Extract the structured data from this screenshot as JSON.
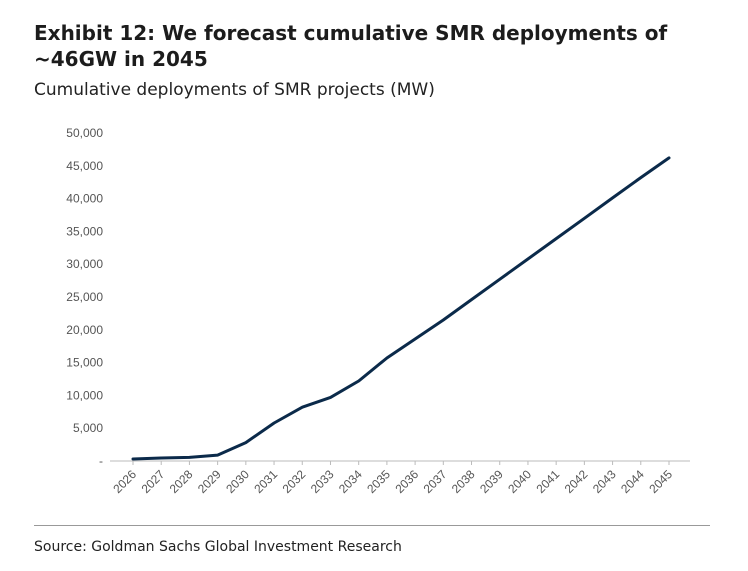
{
  "title": "Exhibit 12: We forecast cumulative SMR deployments of ~46GW in 2045",
  "subtitle": "Cumulative deployments of SMR projects (MW)",
  "source": "Source: Goldman Sachs Global Investment Research",
  "colors": {
    "line": "#0b2a4a",
    "axis": "#bbbbbb",
    "text": "#555555"
  },
  "chart_data": {
    "type": "line",
    "title": "",
    "xlabel": "",
    "ylabel": "",
    "ylim": [
      0,
      50000
    ],
    "yticks": [
      0,
      5000,
      10000,
      15000,
      20000,
      25000,
      30000,
      35000,
      40000,
      45000,
      50000
    ],
    "ytick_labels": [
      "-",
      "5,000",
      "10,000",
      "15,000",
      "20,000",
      "25,000",
      "30,000",
      "35,000",
      "40,000",
      "45,000",
      "50,000"
    ],
    "grid": false,
    "legend": "none",
    "x": [
      "2026",
      "2027",
      "2028",
      "2029",
      "2030",
      "2031",
      "2032",
      "2033",
      "2034",
      "2035",
      "2036",
      "2037",
      "2038",
      "2039",
      "2040",
      "2041",
      "2042",
      "2043",
      "2044",
      "2045"
    ],
    "series": [
      {
        "name": "",
        "values": [
          300,
          450,
          550,
          900,
          2800,
          5800,
          8200,
          9700,
          12200,
          15700,
          18600,
          21500,
          24600,
          27700,
          30800,
          33900,
          37000,
          40100,
          43200,
          46200
        ]
      }
    ]
  }
}
